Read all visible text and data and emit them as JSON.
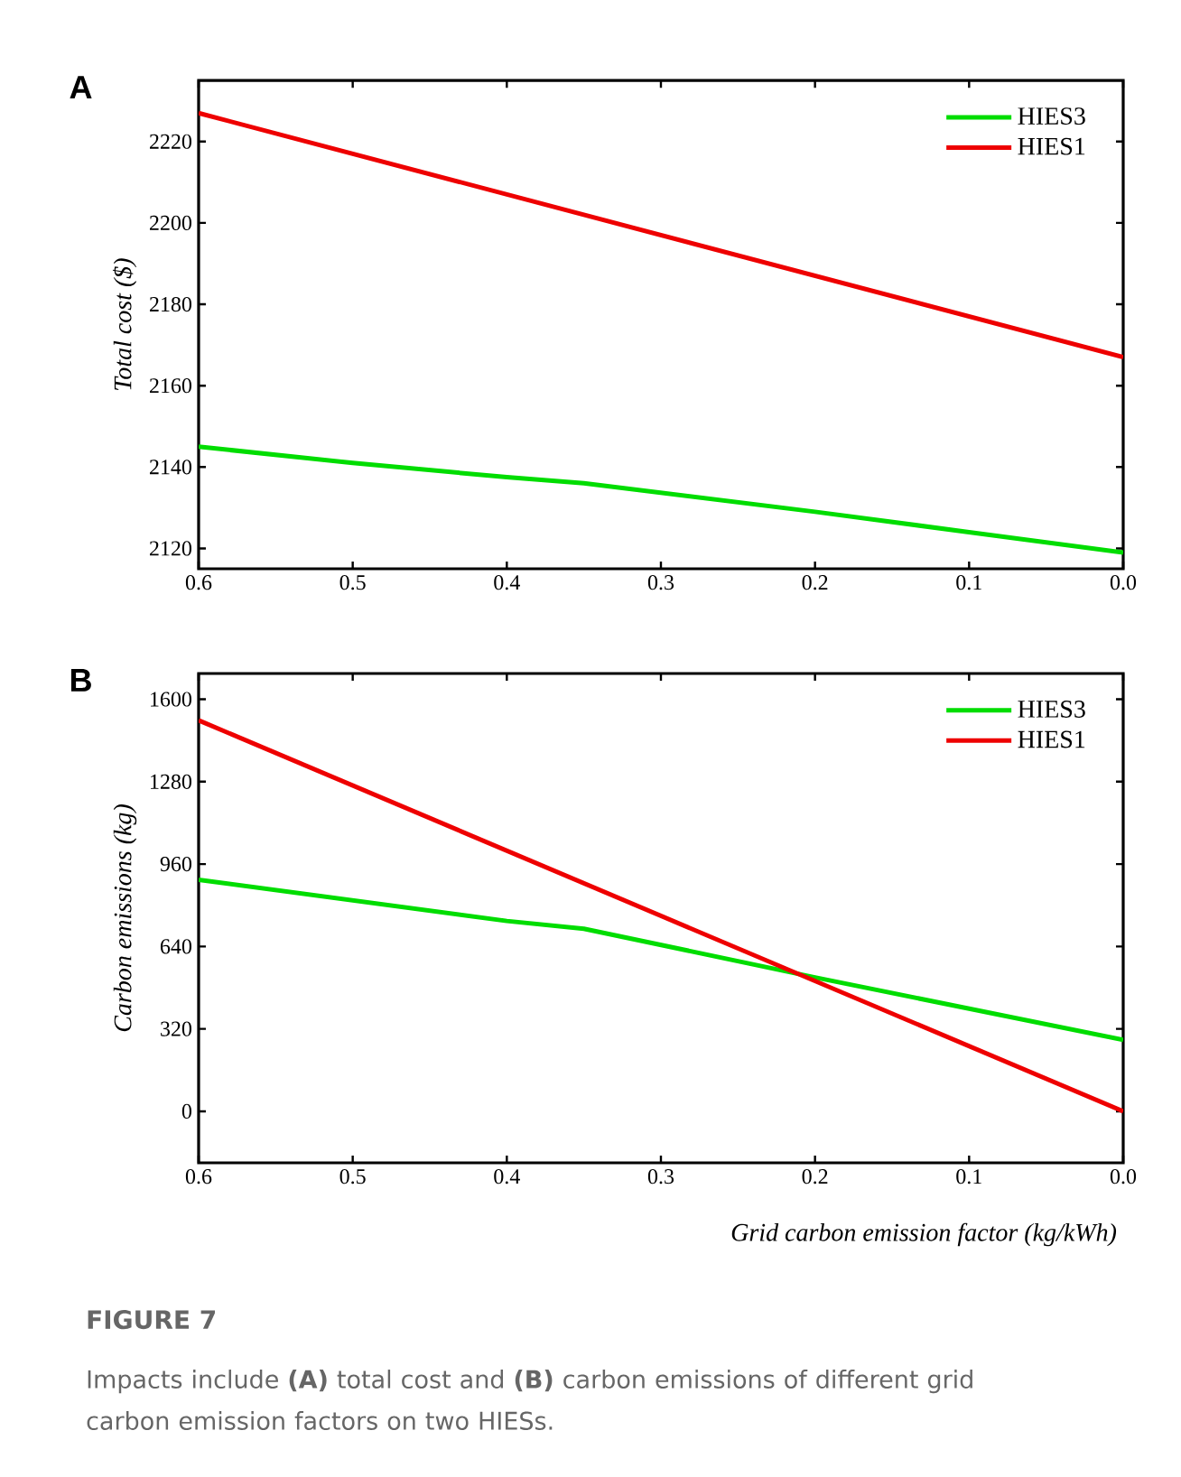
{
  "chart_data": [
    {
      "type": "line",
      "title": "A",
      "ylabel": "*Total cost ($)*",
      "xlim": [
        0.6,
        0
      ],
      "ylim": [
        2115,
        2235
      ],
      "xticks": [
        0.6,
        0.5,
        0.4,
        0.3,
        0.2,
        0.1,
        {
          "value": 0,
          "label": "0.0"
        }
      ],
      "yticks": [
        2120,
        2140,
        2160,
        2180,
        2200,
        2220
      ],
      "legend": "top right",
      "marker": "none",
      "line_style": "solid",
      "series": [
        {
          "name": "HIES3",
          "color": "#00dd00",
          "x": [
            0.6,
            0.5,
            0.4,
            0.35,
            0.2,
            0.1,
            0
          ],
          "values": [
            2145,
            2141,
            2137.5,
            2136,
            2129,
            2124,
            2119
          ]
        },
        {
          "name": "HIES1",
          "color": "#ee0000",
          "x": [
            0.6,
            0
          ],
          "values": [
            2227,
            2167
          ]
        }
      ]
    },
    {
      "type": "line",
      "title": "B",
      "ylabel": "*Carbon emissions (kg)*",
      "xlabel": "*Grid carbon emission factor (kg/kWh)*",
      "xlim": [
        0.6,
        0
      ],
      "ylim": [
        -200,
        1700
      ],
      "xticks": [
        0.6,
        0.5,
        0.4,
        0.3,
        0.2,
        0.1,
        {
          "value": 0,
          "label": "0.0"
        }
      ],
      "yticks": [
        0,
        320,
        640,
        960,
        1280,
        1600
      ],
      "legend": "top right",
      "marker": "none",
      "line_style": "solid",
      "series": [
        {
          "name": "HIES3",
          "color": "#00dd00",
          "x": [
            0.6,
            0.4,
            0.35,
            0.2,
            0
          ],
          "values": [
            899,
            739,
            709,
            520,
            277
          ]
        },
        {
          "name": "HIES1",
          "color": "#ee0000",
          "x": [
            0.6,
            0
          ],
          "values": [
            1518,
            0
          ]
        }
      ],
      "annotations": [
        "**FIGURE 7**",
        "Impacts include **(A)** total cost and **(B)** carbon emissions of different grid carbon emission factors on two HIESs."
      ]
    }
  ]
}
